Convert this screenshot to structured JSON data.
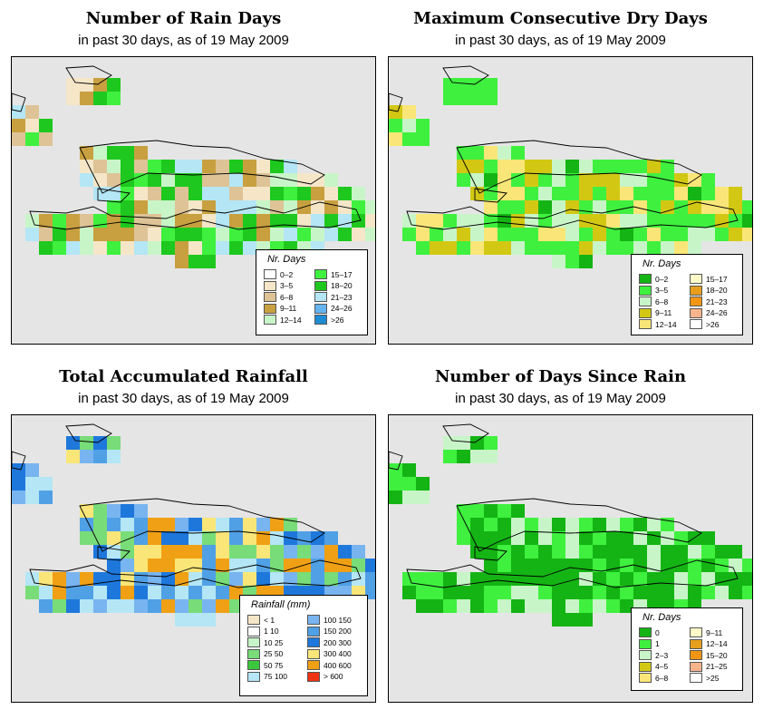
{
  "panels": [
    {
      "title": "Number of Rain Days",
      "subtitle": "in past 30 days, as of  19 May 2009",
      "legend": {
        "title": "Nr. Days",
        "items": [
          {
            "label": "0–2",
            "color": "#ffffff"
          },
          {
            "label": "3–5",
            "color": "#f5e6c8"
          },
          {
            "label": "6–8",
            "color": "#ddc396"
          },
          {
            "label": "9–11",
            "color": "#c8a040"
          },
          {
            "label": "12–14",
            "color": "#c8f5c8"
          },
          {
            "label": "15–17",
            "color": "#3ff03f"
          },
          {
            "label": "18–20",
            "color": "#1ec81e"
          },
          {
            "label": "21–23",
            "color": "#b4e6f5"
          },
          {
            "label": "24–26",
            "color": "#64b4f0"
          },
          {
            "label": ">26",
            "color": "#1e8cd2"
          }
        ]
      }
    },
    {
      "title": "Maximum Consecutive Dry Days",
      "subtitle": "in past 30 days, as of  19 May 2009",
      "legend": {
        "title": "Nr. Days",
        "items": [
          {
            "label": "0–2",
            "color": "#14b414"
          },
          {
            "label": "3–5",
            "color": "#3ff03f"
          },
          {
            "label": "6–8",
            "color": "#c8f5c8"
          },
          {
            "label": "9–11",
            "color": "#d2c814"
          },
          {
            "label": "12–14",
            "color": "#fae678"
          },
          {
            "label": "15–17",
            "color": "#fffac8"
          },
          {
            "label": "18–20",
            "color": "#e6a01e"
          },
          {
            "label": "21–23",
            "color": "#f09614"
          },
          {
            "label": "24–26",
            "color": "#fab48c"
          },
          {
            "label": ">26",
            "color": "#ffffff"
          }
        ]
      }
    },
    {
      "title": "Total Accumulated Rainfall",
      "subtitle": "in past 30 days, as of  19 May 2009",
      "legend": {
        "title": "Rainfall (mm)",
        "items": [
          {
            "label": "< 1",
            "color": "#f5e6c8"
          },
          {
            "label": "1    10",
            "color": "#ffffff"
          },
          {
            "label": "10    25",
            "color": "#c8f5c8"
          },
          {
            "label": "25    50",
            "color": "#78dc78"
          },
          {
            "label": "50    75",
            "color": "#3cc83c"
          },
          {
            "label": "75   100",
            "color": "#b4e6f5"
          },
          {
            "label": "100   150",
            "color": "#78b4f0"
          },
          {
            "label": "150   200",
            "color": "#50a0e6"
          },
          {
            "label": "200   300",
            "color": "#1e78dc"
          },
          {
            "label": "300   400",
            "color": "#fae678"
          },
          {
            "label": "400   600",
            "color": "#f0a014"
          },
          {
            "label": "> 600",
            "color": "#f03214"
          }
        ]
      }
    },
    {
      "title": "Number of Days Since Rain",
      "subtitle": "in past 30 days, as of  19 May 2009",
      "legend": {
        "title": "Nr. Days",
        "items": [
          {
            "label": "0",
            "color": "#14b414"
          },
          {
            "label": "1",
            "color": "#3ff03f"
          },
          {
            "label": "2–3",
            "color": "#c8f5c8"
          },
          {
            "label": "4–5",
            "color": "#d2c814"
          },
          {
            "label": "6–8",
            "color": "#fae678"
          },
          {
            "label": "9–11",
            "color": "#fffac8"
          },
          {
            "label": "12–14",
            "color": "#e6a01e"
          },
          {
            "label": "15–20",
            "color": "#f09614"
          },
          {
            "label": "21–25",
            "color": "#fab48c"
          },
          {
            "label": ">25",
            "color": "#ffffff"
          }
        ]
      }
    }
  ]
}
